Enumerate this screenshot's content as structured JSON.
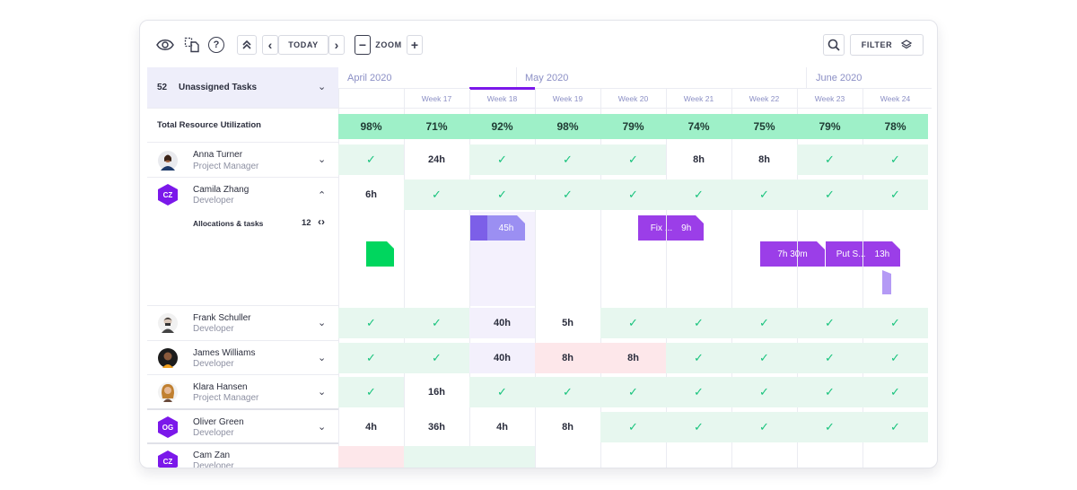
{
  "toolbar": {
    "today_label": "TODAY",
    "zoom_label": "ZOOM",
    "filter_label": "FILTER",
    "help_label": "?",
    "minus_label": "−",
    "plus_label": "+",
    "prev_label": "‹",
    "next_label": "›",
    "collapse_label": "⌃"
  },
  "unassigned": {
    "count": "52",
    "label": "Unassigned Tasks"
  },
  "utilization": {
    "label": "Total Resource Utilization",
    "values": [
      "98%",
      "71%",
      "92%",
      "98%",
      "79%",
      "74%",
      "75%",
      "79%",
      "78%"
    ]
  },
  "months": [
    "April 2020",
    "May 2020",
    "June 2020"
  ],
  "weeks": [
    "",
    "Week 17",
    "Week 18",
    "Week 19",
    "Week 20",
    "Week 21",
    "Week 22",
    "Week 23",
    "Week 24"
  ],
  "current_week": "Week 18",
  "people": [
    {
      "name": "Anna Turner",
      "role": "Project Manager",
      "initials": "",
      "cells": [
        "✓",
        "24h",
        "✓",
        "✓",
        "✓",
        "8h",
        "8h",
        "✓",
        "✓"
      ]
    },
    {
      "name": "Camila Zhang",
      "role": "Developer",
      "initials": "CZ",
      "cells": [
        "6h",
        "✓",
        "✓",
        "✓",
        "✓",
        "✓",
        "✓",
        "✓",
        "✓"
      ]
    },
    {
      "name": "Frank Schuller",
      "role": "Developer",
      "initials": "",
      "cells": [
        "✓",
        "✓",
        "40h",
        "5h",
        "✓",
        "✓",
        "✓",
        "✓",
        "✓"
      ]
    },
    {
      "name": "James Williams",
      "role": "Developer",
      "initials": "",
      "cells": [
        "✓",
        "✓",
        "40h",
        "8h",
        "8h",
        "✓",
        "✓",
        "✓",
        "✓"
      ]
    },
    {
      "name": "Klara Hansen",
      "role": "Project Manager",
      "initials": "",
      "cells": [
        "✓",
        "16h",
        "✓",
        "✓",
        "✓",
        "✓",
        "✓",
        "✓",
        "✓"
      ]
    },
    {
      "name": "Oliver Green",
      "role": "Developer",
      "initials": "OG",
      "cells": [
        "4h",
        "36h",
        "4h",
        "8h",
        "✓",
        "✓",
        "✓",
        "✓",
        "✓"
      ]
    },
    {
      "name": "Cam Zan",
      "role": "Developer",
      "initials": "CZ",
      "cells": [
        "",
        "",
        "",
        "",
        "",
        "",
        "",
        "",
        ""
      ]
    }
  ],
  "allocations": {
    "label": "Allocations & tasks",
    "count": "12",
    "bars": [
      {
        "label": "45h"
      },
      {
        "label": "Fix ...",
        "hours": "9h"
      },
      {
        "label": "7h 30m"
      },
      {
        "label": "Put S...",
        "hours": "13h"
      }
    ]
  },
  "colors": {
    "accent": "#7b18ea",
    "utilization_bg": "#9ef0c8",
    "ok_cell": "#e7f7ef",
    "over_cell": "#fde7ea",
    "check": "#19c37d",
    "task_bar": "#9b3ee8",
    "current_week_bar": "#8e6cf0",
    "green_block": "#00d65e"
  }
}
